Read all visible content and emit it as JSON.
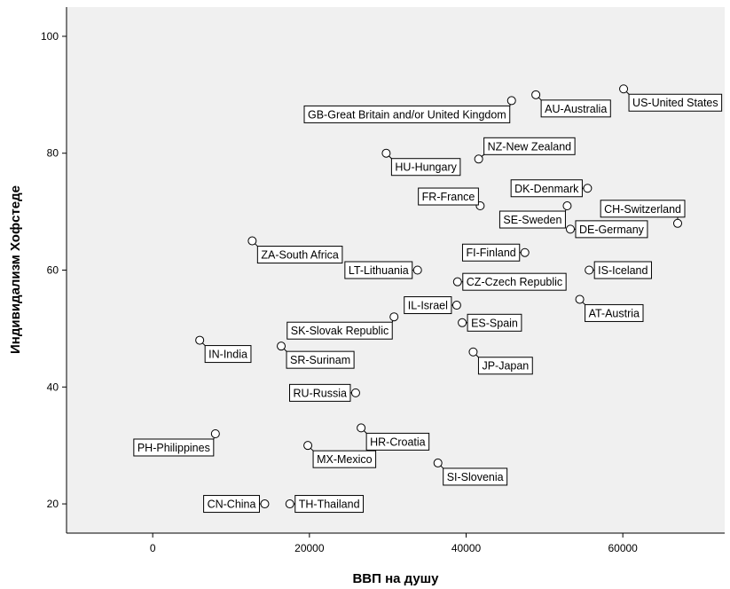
{
  "chart_data": {
    "type": "scatter",
    "xlabel": "ВВП на душу",
    "ylabel": "Индивидализм Хофстеде",
    "xlim": [
      -11000,
      73000
    ],
    "ylim": [
      15,
      105
    ],
    "xticks": [
      0,
      20000,
      40000,
      60000
    ],
    "yticks": [
      20,
      40,
      60,
      80,
      100
    ],
    "xtick_labels": [
      "0",
      "20000",
      "40000",
      "60000"
    ],
    "ytick_labels": [
      "20",
      "40",
      "60",
      "80",
      "100"
    ],
    "grid": false,
    "legend": false,
    "colors": {
      "background": "#f0f0f0",
      "marker_fill": "#ffffff",
      "marker_stroke": "#000000"
    },
    "points": [
      {
        "label": "US-United States",
        "x": 60100,
        "y": 91,
        "pos": "below-right"
      },
      {
        "label": "AU-Australia",
        "x": 48900,
        "y": 90,
        "pos": "below-right"
      },
      {
        "label": "GB-Great Britain and/or United Kingdom",
        "x": 45800,
        "y": 89,
        "pos": "below-left"
      },
      {
        "label": "NZ-New Zealand",
        "x": 41600,
        "y": 79,
        "pos": "above-right"
      },
      {
        "label": "HU-Hungary",
        "x": 29800,
        "y": 80,
        "pos": "below-right"
      },
      {
        "label": "DK-Denmark",
        "x": 55500,
        "y": 74,
        "pos": "left"
      },
      {
        "label": "FR-France",
        "x": 41800,
        "y": 71,
        "pos": "upper-left"
      },
      {
        "label": "SE-Sweden",
        "x": 52900,
        "y": 71,
        "pos": "below-left"
      },
      {
        "label": "CH-Switzerland",
        "x": 67000,
        "y": 68,
        "pos": "above-left"
      },
      {
        "label": "DE-Germany",
        "x": 53300,
        "y": 67,
        "pos": "right"
      },
      {
        "label": "ZA-South Africa",
        "x": 12700,
        "y": 65,
        "pos": "below-right"
      },
      {
        "label": "FI-Finland",
        "x": 47500,
        "y": 63,
        "pos": "left"
      },
      {
        "label": "LT-Lithuania",
        "x": 33800,
        "y": 60,
        "pos": "left"
      },
      {
        "label": "IS-Iceland",
        "x": 55700,
        "y": 60,
        "pos": "right"
      },
      {
        "label": "CZ-Czech Republic",
        "x": 38900,
        "y": 58,
        "pos": "right"
      },
      {
        "label": "AT-Austria",
        "x": 54500,
        "y": 55,
        "pos": "below-right"
      },
      {
        "label": "IL-Israel",
        "x": 38800,
        "y": 54,
        "pos": "left"
      },
      {
        "label": "SK-Slovak Republic",
        "x": 30800,
        "y": 52,
        "pos": "below-left"
      },
      {
        "label": "ES-Spain",
        "x": 39500,
        "y": 51,
        "pos": "right"
      },
      {
        "label": "IN-India",
        "x": 6000,
        "y": 48,
        "pos": "below-right"
      },
      {
        "label": "SR-Surinam",
        "x": 16400,
        "y": 47,
        "pos": "below-right"
      },
      {
        "label": "JP-Japan",
        "x": 40900,
        "y": 46,
        "pos": "below-right"
      },
      {
        "label": "RU-Russia",
        "x": 25900,
        "y": 39,
        "pos": "left"
      },
      {
        "label": "HR-Croatia",
        "x": 26600,
        "y": 33,
        "pos": "below-right"
      },
      {
        "label": "PH-Philippines",
        "x": 8000,
        "y": 32,
        "pos": "below-left"
      },
      {
        "label": "MX-Mexico",
        "x": 19800,
        "y": 30,
        "pos": "below-right"
      },
      {
        "label": "SI-Slovenia",
        "x": 36400,
        "y": 27,
        "pos": "below-right"
      },
      {
        "label": "CN-China",
        "x": 14300,
        "y": 20,
        "pos": "left"
      },
      {
        "label": "TH-Thailand",
        "x": 17500,
        "y": 20,
        "pos": "right"
      }
    ]
  }
}
